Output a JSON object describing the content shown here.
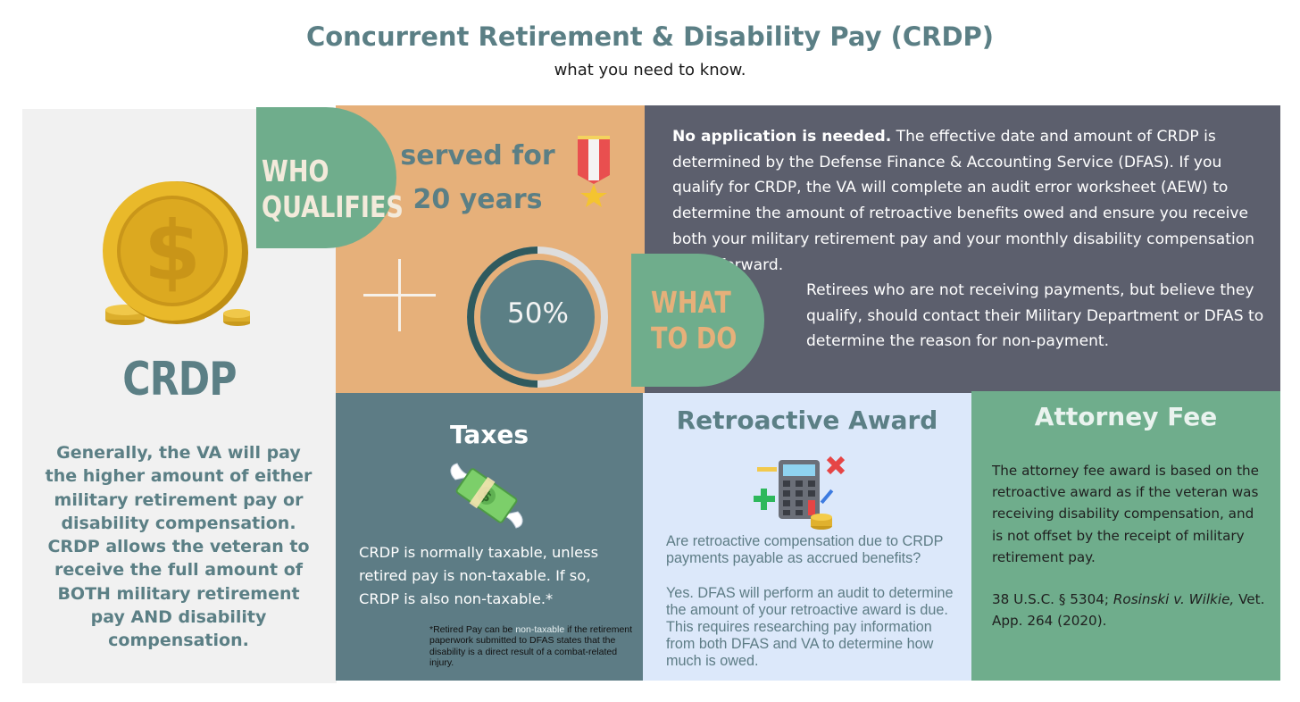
{
  "header": {
    "title": "Concurrent Retirement & Disability Pay (CRDP)",
    "subtitle": "what you need to know."
  },
  "left_panel": {
    "icon": "gold-dollar-coin-icon",
    "heading": "CRDP",
    "body": "Generally, the VA will pay the higher amount of either military retirement pay or disability compensation. CRDP allows the veteran to receive the full amount of BOTH military retirement pay AND disability compensation."
  },
  "who_qualifies": {
    "label_line1": "WHO",
    "label_line2": "QUALIFIES",
    "served_line1": "served for",
    "served_line2": "20 years",
    "medal_icon": "military-medal-icon",
    "plus_icon": "plus-icon",
    "rating_value": 50,
    "rating_label": "50%"
  },
  "what_to_do": {
    "label_line1": "WHAT",
    "label_line2": "TO DO",
    "p1_bold": "No application is needed.",
    "p1_rest": " The effective date and amount of CRDP is determined by the Defense Finance & Accounting Service (DFAS). If you qualify for CRDP, the VA will complete an audit error worksheet (AEW) to determine the amount of retroactive benefits owed and ensure you receive both your military retirement pay and your monthly disability compensation going forward.",
    "p2": "Retirees who are not receiving payments, but believe they qualify, should contact their Military Department or DFAS to determine the reason for non-payment."
  },
  "taxes": {
    "title": "Taxes",
    "icon": "money-with-wings-icon",
    "body": "CRDP is normally taxable, unless retired pay is non-taxable. If so, CRDP is also non-taxable.*",
    "foot_pre": "*Retired Pay can be ",
    "foot_highlight": "non-taxable",
    "foot_post": " if the retirement paperwork submitted to DFAS states that the disability is a direct result of a combat-related injury."
  },
  "retroactive": {
    "title": "Retroactive Award",
    "icon": "calculator-icon",
    "question": "Are retroactive compensation due to CRDP payments payable as accrued benefits?",
    "answer": "Yes. DFAS will perform an audit to determine the amount of your retroactive award is due. This requires researching pay information from both DFAS and VA to determine how much is owed."
  },
  "attorney": {
    "title": "Attorney Fee",
    "body": "The attorney fee award is based on the retroactive award as if the veteran was receiving disability compensation, and is not offset by the receipt of military retirement pay.",
    "cite_pre": "38 U.S.C. §  5304; ",
    "cite_case": "Rosinski v. Wilkie,",
    "cite_post": " Vet. App. 264 (2020)."
  },
  "colors": {
    "teal": "#5b7f85",
    "orange": "#e6b07a",
    "green": "#6fad8c",
    "slate": "#5c5f6d",
    "light_blue": "#dce8fa",
    "light_gray": "#f1f1f1"
  }
}
